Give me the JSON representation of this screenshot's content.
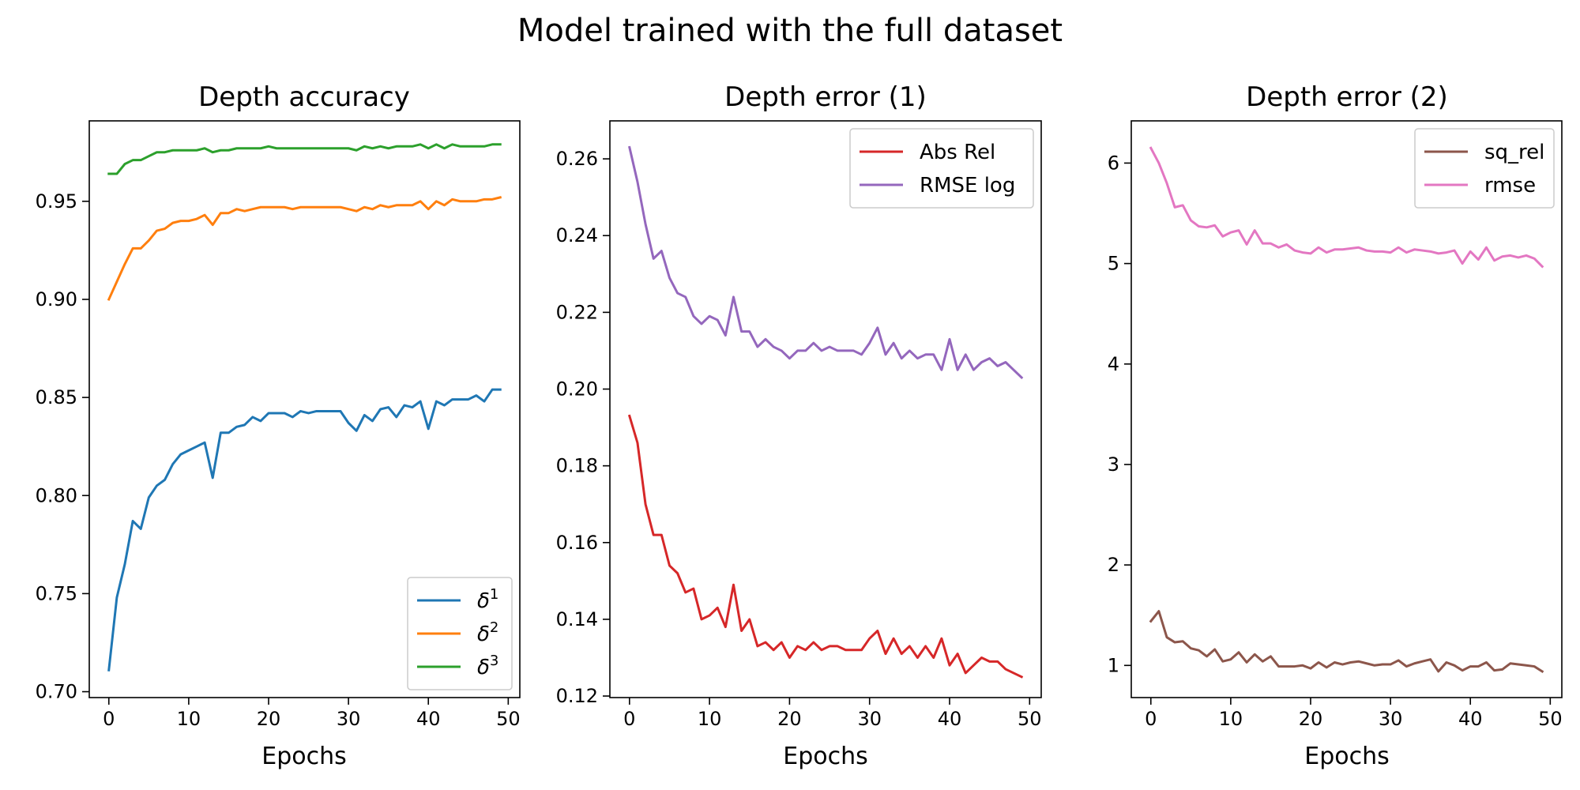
{
  "suptitle": "Model trained with the full dataset",
  "chart_data": [
    {
      "type": "line",
      "title": "Depth accuracy",
      "xlabel": "Epochs",
      "ylabel": "",
      "xlim": [
        -2.45,
        51.45
      ],
      "ylim": [
        0.697,
        0.991
      ],
      "xticks": [
        0,
        10,
        20,
        30,
        40,
        50
      ],
      "xtick_labels": [
        "0",
        "10",
        "20",
        "30",
        "40",
        "50"
      ],
      "yticks": [
        0.7,
        0.75,
        0.8,
        0.85,
        0.9,
        0.95
      ],
      "ytick_labels": [
        "0.70",
        "0.75",
        "0.80",
        "0.85",
        "0.90",
        "0.95"
      ],
      "legend_position": "lower-right",
      "series": [
        {
          "name": "δ",
          "sup": "1",
          "color": "#1f77b4",
          "values": [
            0.711,
            0.748,
            0.765,
            0.787,
            0.783,
            0.799,
            0.805,
            0.808,
            0.816,
            0.821,
            0.823,
            0.825,
            0.827,
            0.809,
            0.832,
            0.832,
            0.835,
            0.836,
            0.84,
            0.838,
            0.842,
            0.842,
            0.842,
            0.84,
            0.843,
            0.842,
            0.843,
            0.843,
            0.843,
            0.843,
            0.837,
            0.833,
            0.841,
            0.838,
            0.844,
            0.845,
            0.84,
            0.846,
            0.845,
            0.848,
            0.834,
            0.848,
            0.846,
            0.849,
            0.849,
            0.849,
            0.851,
            0.848,
            0.854,
            0.854
          ]
        },
        {
          "name": "δ",
          "sup": "2",
          "color": "#ff7f0e",
          "values": [
            0.9,
            0.909,
            0.918,
            0.926,
            0.926,
            0.93,
            0.935,
            0.936,
            0.939,
            0.94,
            0.94,
            0.941,
            0.943,
            0.938,
            0.944,
            0.944,
            0.946,
            0.945,
            0.946,
            0.947,
            0.947,
            0.947,
            0.947,
            0.946,
            0.947,
            0.947,
            0.947,
            0.947,
            0.947,
            0.947,
            0.946,
            0.945,
            0.947,
            0.946,
            0.948,
            0.947,
            0.948,
            0.948,
            0.948,
            0.95,
            0.946,
            0.95,
            0.948,
            0.951,
            0.95,
            0.95,
            0.95,
            0.951,
            0.951,
            0.952
          ]
        },
        {
          "name": "δ",
          "sup": "3",
          "color": "#2ca02c",
          "values": [
            0.964,
            0.964,
            0.969,
            0.971,
            0.971,
            0.973,
            0.975,
            0.975,
            0.976,
            0.976,
            0.976,
            0.976,
            0.977,
            0.975,
            0.976,
            0.976,
            0.977,
            0.977,
            0.977,
            0.977,
            0.978,
            0.977,
            0.977,
            0.977,
            0.977,
            0.977,
            0.977,
            0.977,
            0.977,
            0.977,
            0.977,
            0.976,
            0.978,
            0.977,
            0.978,
            0.977,
            0.978,
            0.978,
            0.978,
            0.979,
            0.977,
            0.979,
            0.977,
            0.979,
            0.978,
            0.978,
            0.978,
            0.978,
            0.979,
            0.979
          ]
        }
      ]
    },
    {
      "type": "line",
      "title": "Depth error (1)",
      "xlabel": "Epochs",
      "ylabel": "",
      "xlim": [
        -2.45,
        51.45
      ],
      "ylim": [
        0.1196,
        0.2699
      ],
      "xticks": [
        0,
        10,
        20,
        30,
        40,
        50
      ],
      "xtick_labels": [
        "0",
        "10",
        "20",
        "30",
        "40",
        "50"
      ],
      "yticks": [
        0.12,
        0.14,
        0.16,
        0.18,
        0.2,
        0.22,
        0.24,
        0.26
      ],
      "ytick_labels": [
        "0.12",
        "0.14",
        "0.16",
        "0.18",
        "0.20",
        "0.22",
        "0.24",
        "0.26"
      ],
      "legend_position": "upper-right",
      "series": [
        {
          "name": "Abs Rel",
          "color": "#d62728",
          "values": [
            0.193,
            0.186,
            0.17,
            0.162,
            0.162,
            0.154,
            0.152,
            0.147,
            0.148,
            0.14,
            0.141,
            0.143,
            0.138,
            0.149,
            0.137,
            0.14,
            0.133,
            0.134,
            0.132,
            0.134,
            0.13,
            0.133,
            0.132,
            0.134,
            0.132,
            0.133,
            0.133,
            0.132,
            0.132,
            0.132,
            0.135,
            0.137,
            0.131,
            0.135,
            0.131,
            0.133,
            0.13,
            0.133,
            0.13,
            0.135,
            0.128,
            0.131,
            0.126,
            0.128,
            0.13,
            0.129,
            0.129,
            0.127,
            0.126,
            0.125
          ]
        },
        {
          "name": "RMSE log",
          "color": "#9467bd",
          "values": [
            0.263,
            0.254,
            0.243,
            0.234,
            0.236,
            0.229,
            0.225,
            0.224,
            0.219,
            0.217,
            0.219,
            0.218,
            0.214,
            0.224,
            0.215,
            0.215,
            0.211,
            0.213,
            0.211,
            0.21,
            0.208,
            0.21,
            0.21,
            0.212,
            0.21,
            0.211,
            0.21,
            0.21,
            0.21,
            0.209,
            0.212,
            0.216,
            0.209,
            0.212,
            0.208,
            0.21,
            0.208,
            0.209,
            0.209,
            0.205,
            0.213,
            0.205,
            0.209,
            0.205,
            0.207,
            0.208,
            0.206,
            0.207,
            0.205,
            0.203
          ]
        }
      ]
    },
    {
      "type": "line",
      "title": "Depth error (2)",
      "xlabel": "Epochs",
      "ylabel": "",
      "xlim": [
        -2.45,
        51.45
      ],
      "ylim": [
        0.68,
        6.42
      ],
      "xticks": [
        0,
        10,
        20,
        30,
        40,
        50
      ],
      "xtick_labels": [
        "0",
        "10",
        "20",
        "30",
        "40",
        "50"
      ],
      "yticks": [
        1,
        2,
        3,
        4,
        5,
        6
      ],
      "ytick_labels": [
        "1",
        "2",
        "3",
        "4",
        "5",
        "6"
      ],
      "legend_position": "upper-right",
      "series": [
        {
          "name": "sq_rel",
          "color": "#8c564b",
          "values": [
            1.44,
            1.54,
            1.28,
            1.23,
            1.24,
            1.17,
            1.15,
            1.09,
            1.16,
            1.04,
            1.06,
            1.13,
            1.03,
            1.11,
            1.04,
            1.09,
            0.99,
            0.99,
            0.99,
            1.0,
            0.97,
            1.03,
            0.98,
            1.03,
            1.01,
            1.03,
            1.04,
            1.02,
            1.0,
            1.01,
            1.01,
            1.05,
            0.99,
            1.02,
            1.04,
            1.06,
            0.94,
            1.03,
            1.0,
            0.95,
            0.99,
            0.99,
            1.03,
            0.95,
            0.96,
            1.02,
            1.01,
            1.0,
            0.99,
            0.94
          ]
        },
        {
          "name": "rmse",
          "color": "#e377c2",
          "values": [
            6.15,
            6.0,
            5.8,
            5.56,
            5.58,
            5.43,
            5.37,
            5.36,
            5.38,
            5.27,
            5.31,
            5.33,
            5.19,
            5.33,
            5.2,
            5.2,
            5.16,
            5.19,
            5.13,
            5.11,
            5.1,
            5.16,
            5.11,
            5.14,
            5.14,
            5.15,
            5.16,
            5.13,
            5.12,
            5.12,
            5.11,
            5.16,
            5.11,
            5.14,
            5.13,
            5.12,
            5.1,
            5.11,
            5.13,
            5.0,
            5.12,
            5.04,
            5.16,
            5.03,
            5.07,
            5.08,
            5.06,
            5.08,
            5.05,
            4.97
          ]
        }
      ]
    }
  ]
}
